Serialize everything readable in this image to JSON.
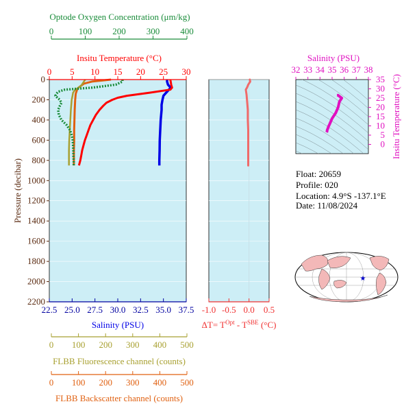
{
  "colors": {
    "plot_bg": "#cdeef6",
    "oxygen": "#1a8c3a",
    "temperature": "#ff0000",
    "salinity": "#0000e6",
    "pressure_axis": "#5a2a10",
    "fluorescence": "#a8a030",
    "backscatter": "#e06010",
    "delta_t": "#f06a6a",
    "ts": "#e010c0",
    "world_land": "#f3b8b8",
    "world_star": "#0000cc"
  },
  "labels": {
    "oxygen_axis": "Optode Oxygen Concentration (μm/kg)",
    "temperature_axis": "Insitu Temperature (°C)",
    "pressure_axis": "Pressure (decibar)",
    "salinity_axis": "Salinity (PSU)",
    "fluorescence_axis": "FLBB Fluorescence channel (counts)",
    "backscatter_axis": "FLBB Backscatter channel (counts)",
    "delta_t_axis": "ΔT= T",
    "delta_t_sup1": "Opt",
    "delta_t_mid": " - T",
    "delta_t_sup2": "SBE",
    "delta_t_unit": " (°C)",
    "ts_salinity_axis": "Salinity (PSU)",
    "ts_temperature_axis": "Insitu Temperature (°C)"
  },
  "info": {
    "float": "Float:  20659",
    "profile": "Profile:  020",
    "location": "Location:  4.9°S  -137.1°E",
    "date": "Date:  11/08/2024"
  },
  "chart_data": [
    {
      "type": "line",
      "name": "profile",
      "y_axis": {
        "label": "Pressure (decibar)",
        "range": [
          2200,
          0
        ],
        "ticks": [
          0,
          200,
          400,
          600,
          800,
          1000,
          1200,
          1400,
          1600,
          1800,
          2000,
          2200
        ]
      },
      "oxygen_axis": {
        "range": [
          0,
          400
        ],
        "ticks": [
          0,
          100,
          200,
          300,
          400
        ]
      },
      "temperature_axis": {
        "range": [
          0,
          30
        ],
        "ticks": [
          0,
          5,
          10,
          15,
          20,
          25,
          30
        ]
      },
      "salinity_axis": {
        "range": [
          22.5,
          37.5
        ],
        "ticks": [
          "22.5",
          "25.0",
          "27.5",
          "30.0",
          "32.5",
          "35.0",
          "37.5"
        ]
      },
      "fluorescence_axis": {
        "range": [
          0,
          500
        ],
        "ticks": [
          0,
          100,
          200,
          300,
          400,
          500
        ]
      },
      "backscatter_axis": {
        "range": [
          0,
          500
        ],
        "ticks": [
          0,
          100,
          200,
          300,
          400,
          500
        ]
      },
      "series": {
        "temperature": {
          "p": [
            0,
            20,
            50,
            80,
            100,
            130,
            160,
            180,
            200,
            230,
            260,
            300,
            350,
            400,
            450,
            500,
            550,
            600,
            650,
            700,
            750,
            800,
            850
          ],
          "v": [
            26.5,
            26.6,
            26.7,
            26.9,
            26.5,
            22,
            17,
            15,
            13.8,
            12.5,
            11.8,
            11,
            10.2,
            9.6,
            9,
            8.6,
            8.2,
            7.8,
            7.5,
            7.2,
            7.0,
            6.8,
            6.5
          ]
        },
        "salinity": {
          "p": [
            0,
            20,
            50,
            80,
            100,
            130,
            160,
            200,
            250,
            300,
            400,
            500,
            600,
            700,
            800,
            850
          ],
          "v": [
            35.4,
            35.4,
            35.5,
            35.8,
            35.6,
            35.3,
            35.0,
            34.9,
            34.8,
            34.8,
            34.7,
            34.65,
            34.6,
            34.58,
            34.55,
            34.55
          ]
        },
        "oxygen": {
          "p": [
            0,
            20,
            50,
            80,
            100,
            120,
            140,
            160,
            180,
            200,
            230,
            260,
            300,
            350,
            400,
            450,
            500,
            550,
            600,
            650,
            700,
            750,
            800,
            850
          ],
          "v": [
            210,
            210,
            190,
            120,
            40,
            20,
            15,
            12,
            18,
            25,
            30,
            25,
            20,
            22,
            30,
            45,
            55,
            60,
            63,
            64,
            65,
            65,
            66,
            66
          ]
        },
        "fluorescence": {
          "p": [
            0,
            20,
            40,
            60,
            80,
            100,
            130,
            160,
            200,
            300,
            400,
            500,
            600,
            700,
            800,
            850
          ],
          "v": [
            125,
            120,
            115,
            110,
            100,
            88,
            80,
            78,
            75,
            72,
            70,
            68,
            66,
            65,
            65,
            65
          ]
        },
        "backscatter": {
          "p": [
            0,
            20,
            40,
            60,
            80,
            100,
            140,
            200,
            300,
            400,
            500,
            600,
            700,
            800,
            850
          ],
          "v": [
            220,
            150,
            120,
            110,
            100,
            95,
            90,
            88,
            86,
            85,
            84,
            84,
            83,
            83,
            83
          ]
        }
      }
    },
    {
      "type": "scatter",
      "name": "delta_t",
      "x_axis": {
        "label": "ΔT= TOpt - TSBE (°C)",
        "range": [
          -1.0,
          0.5
        ],
        "ticks": [
          "-1.0",
          "-0.5",
          "0.0",
          "0.5"
        ]
      },
      "p": [
        0,
        20,
        50,
        80,
        100,
        150,
        200,
        250,
        300,
        400,
        500,
        600,
        700,
        800,
        850
      ],
      "v": [
        0.02,
        0.03,
        -0.02,
        -0.05,
        -0.08,
        -0.06,
        -0.05,
        -0.04,
        -0.03,
        -0.03,
        -0.02,
        -0.02,
        -0.02,
        -0.02,
        -0.02
      ]
    },
    {
      "type": "line",
      "name": "ts_diagram",
      "x_axis": {
        "label": "Salinity (PSU)",
        "range": [
          32,
          38
        ],
        "ticks": [
          32,
          33,
          34,
          35,
          36,
          37,
          38
        ]
      },
      "y_axis": {
        "label": "Insitu Temperature (°C)",
        "range": [
          -5,
          35
        ],
        "ticks": [
          0,
          5,
          10,
          15,
          20,
          25,
          30,
          35
        ]
      },
      "salinity": [
        34.55,
        34.58,
        34.6,
        34.65,
        34.7,
        34.8,
        34.9,
        35.0,
        35.3,
        35.5,
        35.6,
        35.8,
        35.5,
        35.4
      ],
      "temperature": [
        6.5,
        7.0,
        7.8,
        8.6,
        9.6,
        11.0,
        12.5,
        14.0,
        17.0,
        20.0,
        23.0,
        25.0,
        26.5,
        26.5
      ]
    }
  ]
}
